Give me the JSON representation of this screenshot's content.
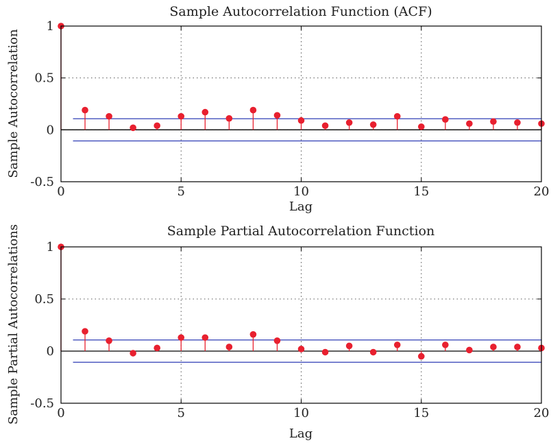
{
  "chart_data": [
    {
      "type": "stem",
      "title": "Sample Autocorrelation Function (ACF)",
      "xlabel": "Lag",
      "ylabel": "Sample Autocorrelation",
      "xlim": [
        0,
        20
      ],
      "ylim": [
        -0.5,
        1
      ],
      "xticks": [
        "0",
        "5",
        "10",
        "15",
        "20"
      ],
      "yticks": [
        "1",
        "0.5",
        "0",
        "-0.5"
      ],
      "grid": true,
      "x": [
        0,
        1,
        2,
        3,
        4,
        5,
        6,
        7,
        8,
        9,
        10,
        11,
        12,
        13,
        14,
        15,
        16,
        17,
        18,
        19,
        20
      ],
      "values": [
        1.0,
        0.19,
        0.13,
        0.02,
        0.04,
        0.13,
        0.17,
        0.11,
        0.19,
        0.14,
        0.09,
        0.04,
        0.07,
        0.05,
        0.13,
        0.03,
        0.1,
        0.06,
        0.08,
        0.07,
        0.06
      ],
      "bounds": [
        0.107,
        -0.107
      ],
      "stem_color": "#e8202f",
      "bound_color": "#2f3db5"
    },
    {
      "type": "stem",
      "title": "Sample Partial Autocorrelation Function",
      "xlabel": "Lag",
      "ylabel": "Sample Partial Autocorrelations",
      "xlim": [
        0,
        20
      ],
      "ylim": [
        -0.5,
        1
      ],
      "xticks": [
        "0",
        "5",
        "10",
        "15",
        "20"
      ],
      "yticks": [
        "1",
        "0.5",
        "0",
        "-0.5"
      ],
      "grid": true,
      "x": [
        0,
        1,
        2,
        3,
        4,
        5,
        6,
        7,
        8,
        9,
        10,
        11,
        12,
        13,
        14,
        15,
        16,
        17,
        18,
        19,
        20
      ],
      "values": [
        1.0,
        0.19,
        0.1,
        -0.02,
        0.03,
        0.13,
        0.13,
        0.04,
        0.16,
        0.1,
        0.02,
        -0.01,
        0.05,
        -0.01,
        0.06,
        -0.05,
        0.06,
        0.01,
        0.04,
        0.04,
        0.03
      ],
      "bounds": [
        0.107,
        -0.107
      ],
      "stem_color": "#e8202f",
      "bound_color": "#2f3db5"
    }
  ]
}
